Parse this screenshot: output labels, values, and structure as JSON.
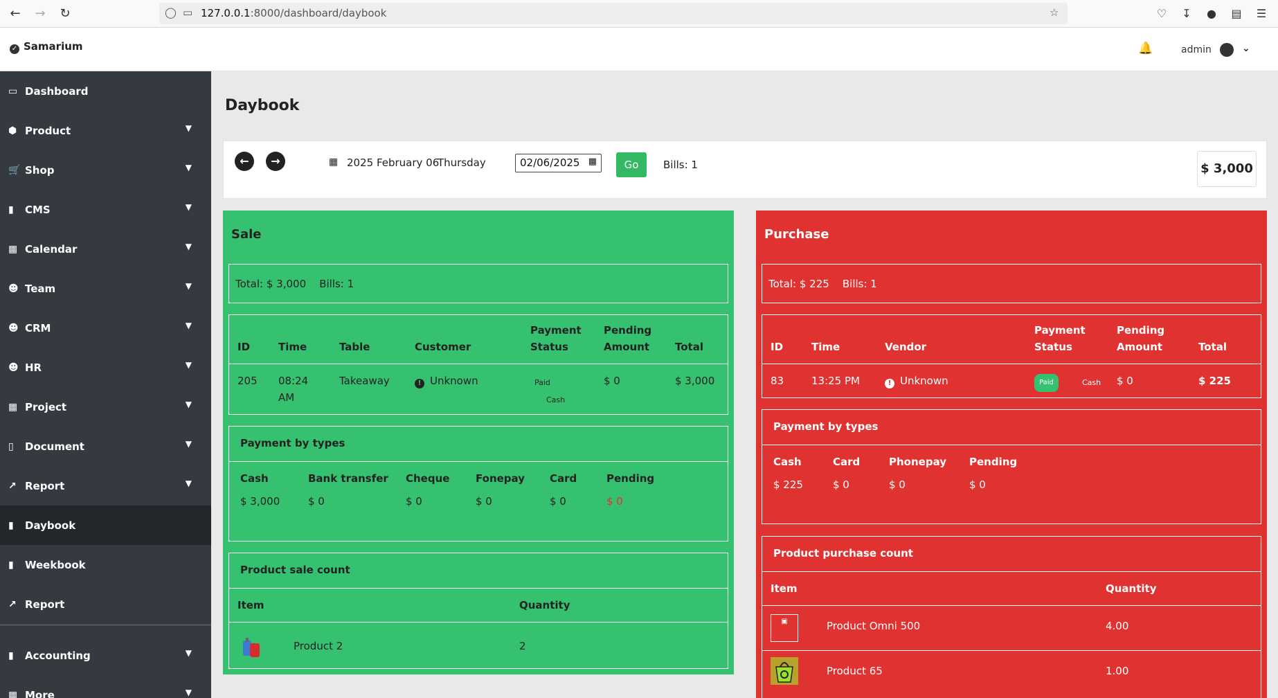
{
  "browser": {
    "url_host": "127.0.0.1",
    "url_path": ":8000/dashboard/daybook"
  },
  "header": {
    "brand": "Samarium",
    "user": "admin"
  },
  "sidebar": {
    "items": [
      {
        "label": "Dashboard"
      },
      {
        "label": "Product"
      },
      {
        "label": "Shop"
      },
      {
        "label": "CMS"
      },
      {
        "label": "Calendar"
      },
      {
        "label": "Team"
      },
      {
        "label": "CRM"
      },
      {
        "label": "HR"
      },
      {
        "label": "Project"
      },
      {
        "label": "Document"
      },
      {
        "label": "Report"
      },
      {
        "label": "Daybook"
      },
      {
        "label": "Weekbook"
      },
      {
        "label": "Report"
      },
      {
        "label": "Accounting"
      },
      {
        "label": "More"
      }
    ]
  },
  "page": {
    "title": "Daybook"
  },
  "toolbar": {
    "date_label": "2025 February 06",
    "day_label": "Thursday",
    "date_input": "02/06/2025",
    "go_label": "Go",
    "bills": "Bills: 1",
    "grand_total": "$  3,000"
  },
  "sale": {
    "title": "Sale",
    "total": "Total: $ 3,000",
    "bills": "Bills: 1",
    "headers": {
      "id": "ID",
      "time": "Time",
      "table": "Table",
      "customer": "Customer",
      "payment_status_1": "Payment",
      "payment_status_2": "Status",
      "pending_1": "Pending",
      "pending_2": "Amount",
      "total": "Total"
    },
    "rows": [
      {
        "id": "205",
        "time_1": "08:24",
        "time_2": "AM",
        "table": "Takeaway",
        "customer": "Unknown",
        "status": "Paid",
        "method": "Cash",
        "pending": "$ 0",
        "total": "$ 3,000"
      }
    ],
    "payment_types": {
      "title": "Payment by types",
      "labels": [
        "Cash",
        "Bank transfer",
        "Cheque",
        "Fonepay",
        "Card",
        "Pending"
      ],
      "values": [
        "$ 3,000",
        "$ 0",
        "$ 0",
        "$ 0",
        "$ 0",
        "$ 0"
      ]
    },
    "product_count": {
      "title": "Product sale count",
      "col_item": "Item",
      "col_qty": "Quantity",
      "rows": [
        {
          "item": "Product 2",
          "qty": "2"
        }
      ]
    }
  },
  "purchase": {
    "title": "Purchase",
    "total": "Total: $ 225",
    "bills": "Bills: 1",
    "headers": {
      "id": "ID",
      "time": "Time",
      "vendor": "Vendor",
      "payment_status_1": "Payment",
      "payment_status_2": "Status",
      "pending_1": "Pending",
      "pending_2": "Amount",
      "total": "Total"
    },
    "rows": [
      {
        "id": "83",
        "time": "13:25 PM",
        "vendor": "Unknown",
        "status": "Paid",
        "method": "Cash",
        "pending": "$ 0",
        "total": "$ 225"
      }
    ],
    "payment_types": {
      "title": "Payment by types",
      "labels": [
        "Cash",
        "Card",
        "Phonepay",
        "Pending"
      ],
      "values": [
        "$ 225",
        "$ 0",
        "$ 0",
        "$ 0"
      ]
    },
    "product_count": {
      "title": "Product purchase count",
      "col_item": "Item",
      "col_qty": "Quantity",
      "rows": [
        {
          "item": "Product Omni 500",
          "qty": "4.00"
        },
        {
          "item": "Product 65",
          "qty": "1.00"
        }
      ]
    }
  }
}
